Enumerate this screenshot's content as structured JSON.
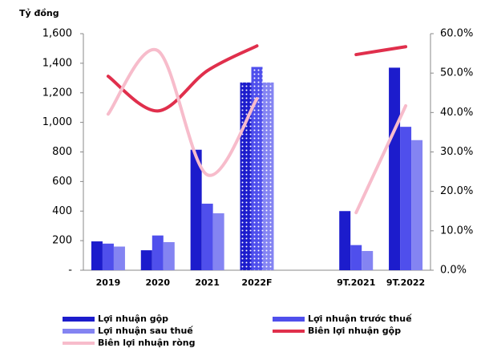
{
  "chart_data": {
    "type": "bar_line",
    "y_label": "Tỷ đồng",
    "categories": [
      "2019",
      "2020",
      "2021",
      "2022F",
      null,
      "9T.2021",
      "9T.2022"
    ],
    "series": [
      {
        "name": "Lợi nhuận gộp",
        "color": "#1c1ccc",
        "values": [
          195,
          135,
          815,
          1270,
          null,
          400,
          1370
        ]
      },
      {
        "name": "Lợi nhuận trước thuế",
        "color": "#4f4fec",
        "values": [
          180,
          235,
          450,
          1375,
          null,
          170,
          970
        ]
      },
      {
        "name": "Lợi nhuận sau thuế",
        "color": "#8484f2",
        "values": [
          160,
          190,
          385,
          1270,
          null,
          130,
          880
        ]
      },
      {
        "name": "Biên lợi nhuận gộp",
        "color": "#e02f4c",
        "axis": "y2",
        "values": [
          49.2,
          40.4,
          50.6,
          56.9,
          null,
          54.7,
          56.7
        ]
      },
      {
        "name": "Biên lợi nhuận ròng",
        "color": "#f7bccb",
        "axis": "y2",
        "values": [
          39.6,
          55.7,
          24.2,
          43.5,
          null,
          14.6,
          41.7
        ]
      }
    ],
    "dotted_categories": [
      3
    ],
    "ylim": [
      0,
      1600
    ],
    "yticks": [
      {
        "value": 0,
        "label": "-"
      },
      200,
      400,
      600,
      800,
      {
        "value": 1000,
        "label": "1,000"
      },
      {
        "value": 1200,
        "label": "1,200"
      },
      {
        "value": 1400,
        "label": "1,400"
      },
      {
        "value": 1600,
        "label": "1,600"
      }
    ],
    "y2lim": [
      0,
      60
    ],
    "y2ticks": [
      {
        "value": 0,
        "label": "0.0%"
      },
      {
        "value": 10,
        "label": "10.0%"
      },
      {
        "value": 20,
        "label": "20.0%"
      },
      {
        "value": 30,
        "label": "30.0%"
      },
      {
        "value": 40,
        "label": "40.0%"
      },
      {
        "value": 50,
        "label": "50.0%"
      },
      {
        "value": 60,
        "label": "60.0%"
      }
    ],
    "legend": "bottom"
  }
}
